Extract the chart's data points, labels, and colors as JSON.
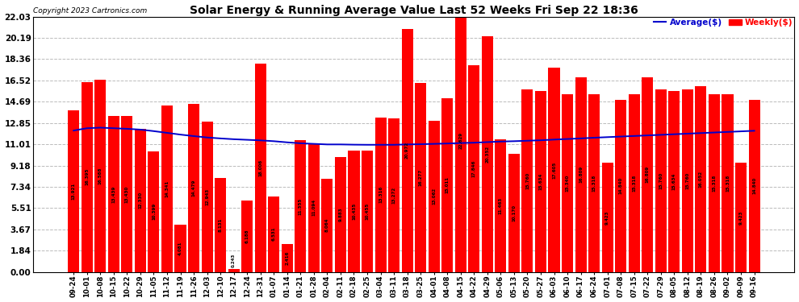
{
  "title": "Solar Energy & Running Average Value Last 52 Weeks Fri Sep 22 18:36",
  "copyright": "Copyright 2023 Cartronics.com",
  "legend_avg": "Average($)",
  "legend_weekly": "Weekly($)",
  "bar_color": "#ff0000",
  "avg_line_color": "#0000cc",
  "background_color": "#ffffff",
  "grid_color": "#bbbbbb",
  "yticks": [
    0.0,
    1.84,
    3.67,
    5.51,
    7.34,
    9.18,
    11.01,
    12.85,
    14.69,
    16.52,
    18.36,
    20.19,
    22.03
  ],
  "categories": [
    "09-24",
    "10-01",
    "10-08",
    "10-15",
    "10-22",
    "10-29",
    "11-05",
    "11-12",
    "11-19",
    "11-26",
    "12-03",
    "12-10",
    "12-17",
    "12-24",
    "12-31",
    "01-07",
    "01-14",
    "01-21",
    "01-28",
    "02-04",
    "02-11",
    "02-18",
    "02-25",
    "03-04",
    "03-11",
    "03-18",
    "03-25",
    "04-01",
    "04-08",
    "04-15",
    "04-22",
    "04-29",
    "05-06",
    "05-13",
    "05-20",
    "05-27",
    "06-03",
    "06-10",
    "06-17",
    "06-24",
    "07-01",
    "07-08",
    "07-15",
    "07-22",
    "07-29",
    "08-05",
    "08-12",
    "08-19",
    "08-26",
    "09-02",
    "09-09",
    "09-16"
  ],
  "values": [
    13.921,
    16.395,
    16.588,
    13.439,
    13.43,
    12.33,
    10.399,
    14.341,
    4.081,
    14.479,
    12.943,
    8.131,
    0.243,
    6.188,
    18.006,
    6.531,
    2.416,
    11.355,
    11.094,
    8.064,
    9.883,
    10.435,
    10.455,
    13.316,
    13.272,
    20.972,
    16.277,
    13.062,
    15.011,
    22.629,
    17.846,
    20.352,
    11.463,
    10.17,
    15.76,
    15.634,
    17.605,
    15.34,
    16.809,
    15.318,
    9.423,
    14.84,
    15.318,
    16.809,
    15.76,
    15.634,
    15.76,
    16.052,
    15.318,
    15.318,
    9.423,
    14.84
  ],
  "avg_values": [
    12.2,
    12.4,
    12.45,
    12.4,
    12.35,
    12.28,
    12.15,
    12.0,
    11.85,
    11.72,
    11.6,
    11.52,
    11.45,
    11.4,
    11.35,
    11.28,
    11.18,
    11.1,
    11.05,
    11.0,
    11.0,
    10.98,
    10.97,
    10.97,
    10.97,
    11.0,
    11.02,
    11.05,
    11.08,
    11.12,
    11.15,
    11.2,
    11.25,
    11.28,
    11.32,
    11.36,
    11.42,
    11.47,
    11.52,
    11.58,
    11.63,
    11.68,
    11.73,
    11.78,
    11.83,
    11.88,
    11.93,
    11.98,
    12.03,
    12.08,
    12.13,
    12.18
  ],
  "ymax": 22.03,
  "figwidth": 9.9,
  "figheight": 3.75,
  "dpi": 100
}
